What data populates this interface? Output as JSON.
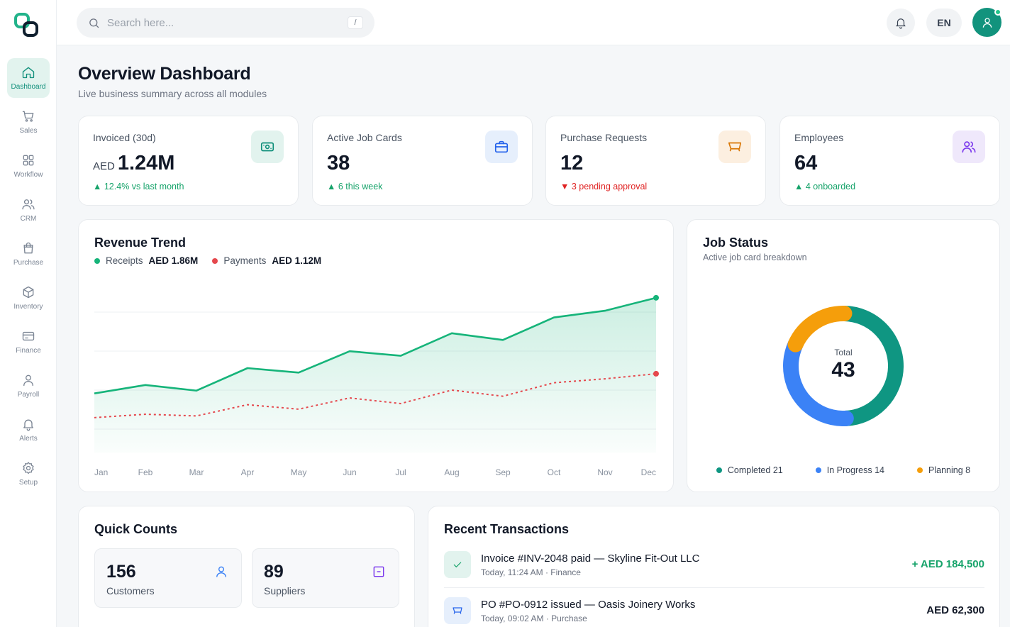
{
  "nav": [
    {
      "label": "Dashboard",
      "icon": "home-icon",
      "active": true
    },
    {
      "label": "Sales",
      "icon": "cart-icon"
    },
    {
      "label": "Workflow",
      "icon": "grid-icon"
    },
    {
      "label": "CRM",
      "icon": "users-icon"
    },
    {
      "label": "Purchase",
      "icon": "bag-icon"
    },
    {
      "label": "Inventory",
      "icon": "box-icon"
    },
    {
      "label": "Finance",
      "icon": "card-icon"
    },
    {
      "label": "Payroll",
      "icon": "user-icon"
    },
    {
      "label": "Alerts",
      "icon": "bell-icon"
    },
    {
      "label": "Setup",
      "icon": "settings-icon"
    }
  ],
  "topbar": {
    "search_placeholder": "Search here...",
    "search_shortcut": "/",
    "language": "EN"
  },
  "header": {
    "title": "Overview Dashboard",
    "subtitle": "Live business summary across all modules"
  },
  "stats": [
    {
      "label": "Invoiced (30d)",
      "unit": "AED",
      "value": "1.24M",
      "delta": "12.4% vs last month",
      "trend": "up",
      "icon": "cash-icon",
      "accent": "#0f8f7a",
      "icon_bg": "#e2f3ee"
    },
    {
      "label": "Active Job Cards",
      "unit": "",
      "value": "38",
      "delta": "6 this week",
      "trend": "up",
      "icon": "briefcase-icon",
      "accent": "#2563eb",
      "icon_bg": "#e6effc"
    },
    {
      "label": "Purchase Requests",
      "unit": "",
      "value": "12",
      "delta": "3 pending approval",
      "trend": "down",
      "icon": "cart-icon",
      "accent": "#d97706",
      "icon_bg": "#fcefe0"
    },
    {
      "label": "Employees",
      "unit": "",
      "value": "64",
      "delta": "4 onboarded",
      "trend": "up",
      "icon": "users-icon",
      "accent": "#7c3aed",
      "icon_bg": "#efe8fb"
    }
  ],
  "revenue": {
    "title": "Revenue Trend",
    "legend": [
      {
        "name": "Receipts",
        "total": "AED 1.86M",
        "color": "#16b47a"
      },
      {
        "name": "Payments",
        "total": "AED 1.12M",
        "color": "#e5484d"
      }
    ]
  },
  "job_status": {
    "title": "Job Status",
    "subtitle": "Active job card breakdown",
    "total_label": "Total",
    "total": "43",
    "legend": [
      {
        "label": "Completed 21",
        "color": "#0f9682"
      },
      {
        "label": "In Progress 14",
        "color": "#3b82f6"
      },
      {
        "label": "Planning 8",
        "color": "#f59e0b"
      }
    ]
  },
  "quick_counts": {
    "title": "Quick Counts",
    "items": [
      {
        "value": "156",
        "label": "Customers",
        "icon": "user-icon",
        "color": "#3b82f6"
      },
      {
        "value": "89",
        "label": "Suppliers",
        "icon": "archive-icon",
        "color": "#7c3aed"
      }
    ]
  },
  "transactions": {
    "title": "Recent Transactions",
    "items": [
      {
        "title": "Invoice #INV-2048 paid — Skyline Fit-Out LLC",
        "meta": "Today, 11:24 AM · Finance",
        "amount": "+ AED 184,500",
        "icon": "check-icon",
        "color": "#16a36a",
        "icon_bg": "#e2f3ee"
      },
      {
        "title": "PO #PO-0912 issued — Oasis Joinery Works",
        "meta": "Today, 09:02 AM · Purchase",
        "amount": "AED 62,300",
        "icon": "cart-icon",
        "color": "#111827",
        "icon_bg": "#e6effc"
      }
    ]
  },
  "chart_data": {
    "type": "line",
    "title": "Revenue Trend",
    "categories": [
      "Jan",
      "Feb",
      "Mar",
      "Apr",
      "May",
      "Jun",
      "Jul",
      "Aug",
      "Sep",
      "Oct",
      "Nov",
      "Dec"
    ],
    "series": [
      {
        "name": "Receipts",
        "color": "#16b47a",
        "style": "solid-area",
        "values": [
          105,
          120,
          110,
          150,
          142,
          180,
          172,
          212,
          200,
          240,
          252,
          275
        ]
      },
      {
        "name": "Payments",
        "color": "#e5484d",
        "style": "dotted",
        "values": [
          62,
          68,
          65,
          85,
          77,
          97,
          87,
          111,
          100,
          124,
          131,
          140
        ]
      }
    ],
    "ylim": [
      0,
      300
    ],
    "grid": true,
    "legend": "top-left"
  },
  "donut": {
    "type": "pie",
    "segments": [
      {
        "name": "Completed",
        "value": 21,
        "color": "#0f9682"
      },
      {
        "name": "In Progress",
        "value": 14,
        "color": "#3b82f6"
      },
      {
        "name": "Planning",
        "value": 8,
        "color": "#f59e0b"
      }
    ]
  }
}
